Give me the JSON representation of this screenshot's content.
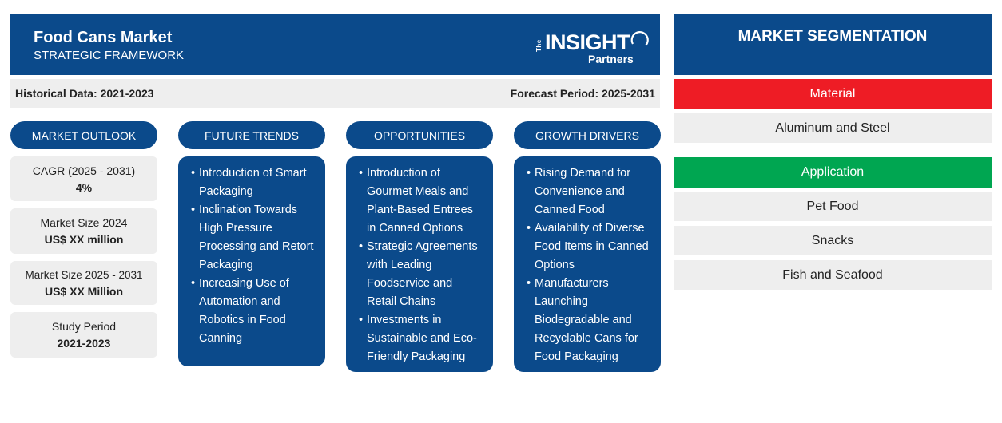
{
  "header": {
    "title": "Food Cans Market",
    "subtitle": "STRATEGIC FRAMEWORK",
    "logo": {
      "the": "The",
      "main": "INSIGHT",
      "sub": "Partners"
    }
  },
  "periods": {
    "historical": "Historical Data: 2021-2023",
    "forecast": "Forecast Period: 2025-2031"
  },
  "columns": {
    "outlook": "MARKET OUTLOOK",
    "trends": "FUTURE TRENDS",
    "opportunities": "OPPORTUNITIES",
    "drivers": "GROWTH DRIVERS"
  },
  "outlook": [
    {
      "label": "CAGR (2025 - 2031)",
      "value": "4%"
    },
    {
      "label": "Market Size 2024",
      "value": "US$ XX million"
    },
    {
      "label": "Market Size 2025 - 2031",
      "value": "US$ XX Million"
    },
    {
      "label": "Study Period",
      "value": "2021-2023"
    }
  ],
  "trends": [
    "Introduction of Smart Packaging",
    "Inclination Towards High Pressure Processing and Retort Packaging",
    "Increasing Use of Automation and Robotics in Food Canning"
  ],
  "opportunities": [
    "Introduction of Gourmet Meals and Plant-Based Entrees in Canned Options",
    "Strategic Agreements with Leading Foodservice and Retail Chains",
    "Investments in Sustainable and Eco-Friendly Packaging"
  ],
  "drivers": [
    "Rising Demand for Convenience and Canned Food",
    "Availability of Diverse Food Items in Canned Options",
    "Manufacturers Launching Biodegradable and Recyclable Cans for Food Packaging"
  ],
  "segmentation": {
    "title": "MARKET SEGMENTATION",
    "material": {
      "label": "Material",
      "color": "#ee1c25",
      "items": [
        "Aluminum and Steel"
      ]
    },
    "application": {
      "label": "Application",
      "color": "#00a651",
      "items": [
        "Pet Food",
        "Snacks",
        "Fish and Seafood"
      ]
    }
  },
  "colors": {
    "brand_blue": "#0b4a8b",
    "panel_grey": "#eeeeee"
  }
}
